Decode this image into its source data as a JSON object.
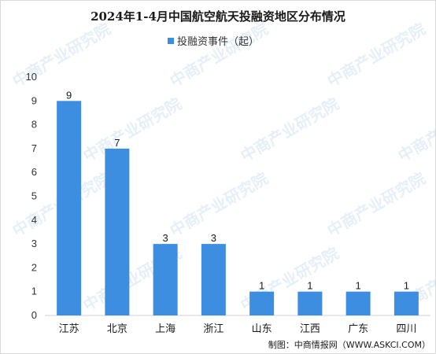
{
  "chart_data": {
    "type": "bar",
    "title": "2024年1-4月中国航空航天投融资地区分布情况",
    "legend": {
      "label": "投融资事件（起）",
      "placement": "top-center",
      "color": "#3d8ee0"
    },
    "categories": [
      "江苏",
      "北京",
      "上海",
      "浙江",
      "山东",
      "江西",
      "广东",
      "四川"
    ],
    "series": [
      {
        "name": "投融资事件（起）",
        "values": [
          9,
          7,
          3,
          3,
          1,
          1,
          1,
          1
        ]
      }
    ],
    "data_labels": [
      "9",
      "7",
      "3",
      "3",
      "1",
      "1",
      "1",
      "1"
    ],
    "yticks": [
      "0",
      "1",
      "2",
      "3",
      "4",
      "5",
      "6",
      "7",
      "8",
      "9",
      "10"
    ],
    "ylim": [
      0,
      10
    ],
    "grid": false,
    "bar_color": "#3d8ee0",
    "source": "制图：中商情报网（WWW.ASKCI.COM）",
    "watermark": "中商产业研究院"
  }
}
